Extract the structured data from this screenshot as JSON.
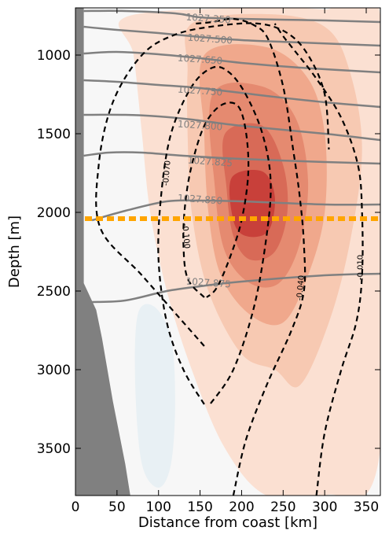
{
  "chart_data": {
    "type": "contour",
    "xlabel": "Distance from coast [km]",
    "ylabel": "Depth [m]",
    "xlim": [
      0,
      367
    ],
    "ylim": [
      3800,
      700
    ],
    "y_inverted": true,
    "x_ticks": [
      0,
      50,
      100,
      150,
      200,
      250,
      300,
      350
    ],
    "y_ticks": [
      1000,
      1500,
      2000,
      2500,
      3000,
      3500
    ],
    "grid": false,
    "colors": {
      "dashed_contour": "#000000",
      "isopycnal": "#808080",
      "reference_line": "#ffa500",
      "topography": "#808080",
      "shading_low": "#f7f7f7",
      "shading_high": "#c8403a",
      "shading_negative": "#e8f0f4"
    },
    "reference_line": {
      "depth": 2040,
      "style": "dotted"
    },
    "isopycnal_labels": [
      {
        "label": "1027.350",
        "x": 160,
        "depth": 770
      },
      {
        "label": "1027.500",
        "x": 162,
        "depth": 900
      },
      {
        "label": "1027.650",
        "x": 150,
        "depth": 1030
      },
      {
        "label": "1027.750",
        "x": 150,
        "depth": 1230
      },
      {
        "label": "1027.800",
        "x": 150,
        "depth": 1450
      },
      {
        "label": "1027.825",
        "x": 162,
        "depth": 1680
      },
      {
        "label": "1027.850",
        "x": 150,
        "depth": 1920
      },
      {
        "label": "1027.875",
        "x": 160,
        "depth": 2450
      }
    ],
    "isopycnals": [
      {
        "name": "1027.350",
        "points": [
          [
            10,
            720
          ],
          [
            60,
            720
          ],
          [
            120,
            735
          ],
          [
            150,
            760
          ],
          [
            200,
            770
          ],
          [
            300,
            780
          ],
          [
            367,
            790
          ]
        ]
      },
      {
        "name": "1027.500",
        "points": [
          [
            10,
            820
          ],
          [
            50,
            840
          ],
          [
            100,
            860
          ],
          [
            150,
            885
          ],
          [
            200,
            905
          ],
          [
            270,
            920
          ],
          [
            367,
            940
          ]
        ]
      },
      {
        "name": "1027.650",
        "points": [
          [
            10,
            990
          ],
          [
            50,
            980
          ],
          [
            100,
            995
          ],
          [
            150,
            1020
          ],
          [
            200,
            1050
          ],
          [
            270,
            1080
          ],
          [
            367,
            1110
          ]
        ]
      },
      {
        "name": "1027.750",
        "points": [
          [
            10,
            1160
          ],
          [
            50,
            1170
          ],
          [
            100,
            1190
          ],
          [
            150,
            1210
          ],
          [
            230,
            1260
          ],
          [
            300,
            1300
          ],
          [
            367,
            1330
          ]
        ]
      },
      {
        "name": "1027.800",
        "points": [
          [
            10,
            1380
          ],
          [
            60,
            1380
          ],
          [
            100,
            1390
          ],
          [
            140,
            1410
          ],
          [
            200,
            1450
          ],
          [
            300,
            1500
          ],
          [
            367,
            1540
          ]
        ]
      },
      {
        "name": "1027.825",
        "points": [
          [
            10,
            1640
          ],
          [
            40,
            1620
          ],
          [
            80,
            1620
          ],
          [
            130,
            1640
          ],
          [
            200,
            1660
          ],
          [
            300,
            1680
          ],
          [
            367,
            1690
          ]
        ]
      },
      {
        "name": "1027.850",
        "points": [
          [
            20,
            2050
          ],
          [
            60,
            1990
          ],
          [
            110,
            1930
          ],
          [
            150,
            1925
          ],
          [
            200,
            1930
          ],
          [
            300,
            1950
          ],
          [
            367,
            1950
          ]
        ]
      },
      {
        "name": "1027.875",
        "points": [
          [
            20,
            2570
          ],
          [
            60,
            2560
          ],
          [
            110,
            2500
          ],
          [
            150,
            2470
          ],
          [
            200,
            2440
          ],
          [
            300,
            2400
          ],
          [
            367,
            2390
          ]
        ]
      }
    ],
    "dashed_contours": [
      {
        "label": "-0.100",
        "points": [
          [
            155,
            2540
          ],
          [
            135,
            2420
          ],
          [
            130,
            2200
          ],
          [
            132,
            1950
          ],
          [
            140,
            1700
          ],
          [
            155,
            1450
          ],
          [
            175,
            1320
          ],
          [
            195,
            1320
          ],
          [
            205,
            1480
          ],
          [
            208,
            1750
          ],
          [
            200,
            2050
          ],
          [
            185,
            2300
          ],
          [
            170,
            2480
          ],
          [
            158,
            2540
          ]
        ]
      },
      {
        "label": "-0.070",
        "points": [
          [
            155,
            3220
          ],
          [
            130,
            3000
          ],
          [
            110,
            2700
          ],
          [
            100,
            2300
          ],
          [
            103,
            1900
          ],
          [
            115,
            1500
          ],
          [
            140,
            1200
          ],
          [
            165,
            1080
          ],
          [
            185,
            1110
          ],
          [
            205,
            1250
          ],
          [
            225,
            1500
          ],
          [
            235,
            1800
          ],
          [
            230,
            2150
          ],
          [
            215,
            2600
          ],
          [
            190,
            3000
          ],
          [
            162,
            3220
          ]
        ]
      },
      {
        "label": "-0.070 outer",
        "points": [
          [
            155,
            2850
          ],
          [
            130,
            2700
          ],
          [
            80,
            2400
          ],
          [
            30,
            2100
          ],
          [
            28,
            1700
          ],
          [
            45,
            1300
          ],
          [
            80,
            1000
          ],
          [
            120,
            870
          ],
          [
            170,
            815
          ],
          [
            220,
            800
          ],
          [
            255,
            860
          ],
          [
            280,
            1000
          ],
          [
            300,
            1250
          ],
          [
            305,
            1600
          ]
        ]
      },
      {
        "label": "-0.040",
        "points": [
          [
            190,
            3800
          ],
          [
            205,
            3450
          ],
          [
            230,
            3100
          ],
          [
            260,
            2750
          ],
          [
            275,
            2500
          ],
          [
            275,
            2200
          ],
          [
            270,
            1900
          ],
          [
            262,
            1600
          ],
          [
            250,
            1200
          ],
          [
            232,
            900
          ],
          [
            215,
            810
          ],
          [
            190,
            770
          ],
          [
            165,
            790
          ],
          [
            145,
            800
          ]
        ]
      },
      {
        "label": "-0.010",
        "points": [
          [
            290,
            3800
          ],
          [
            300,
            3400
          ],
          [
            320,
            3000
          ],
          [
            338,
            2700
          ],
          [
            345,
            2400
          ],
          [
            345,
            2000
          ],
          [
            340,
            1700
          ],
          [
            320,
            1400
          ],
          [
            290,
            1150
          ],
          [
            265,
            980
          ],
          [
            250,
            880
          ],
          [
            240,
            800
          ]
        ]
      }
    ],
    "dashed_contour_labels": [
      {
        "label": "-0.070",
        "x": 110,
        "depth": 1750,
        "angle": -85
      },
      {
        "label": "-0.100",
        "x": 133,
        "depth": 2150,
        "angle": 85
      },
      {
        "label": "-0.040",
        "x": 271,
        "depth": 2480,
        "angle": -85
      },
      {
        "label": "-0.010",
        "x": 343,
        "depth": 2350,
        "angle": -90
      }
    ],
    "shading_levels": [
      {
        "level": "0.1",
        "color": "#fbe0d2",
        "points": [
          [
            60,
            760
          ],
          [
            200,
            700
          ],
          [
            300,
            710
          ],
          [
            367,
            760
          ],
          [
            367,
            3500
          ],
          [
            300,
            3800
          ],
          [
            230,
            3800
          ],
          [
            180,
            3500
          ],
          [
            140,
            3000
          ],
          [
            110,
            2500
          ],
          [
            90,
            2000
          ],
          [
            80,
            1500
          ],
          [
            70,
            1000
          ]
        ]
      },
      {
        "level": "0.2",
        "color": "#f7c9b2",
        "points": [
          [
            140,
            800
          ],
          [
            230,
            740
          ],
          [
            300,
            820
          ],
          [
            330,
            1100
          ],
          [
            345,
            1600
          ],
          [
            330,
            2200
          ],
          [
            305,
            2700
          ],
          [
            270,
            3100
          ],
          [
            240,
            3000
          ],
          [
            200,
            2900
          ],
          [
            160,
            2500
          ],
          [
            140,
            2000
          ],
          [
            135,
            1500
          ],
          [
            135,
            1100
          ]
        ]
      },
      {
        "level": "0.3",
        "color": "#f0a88c",
        "points": [
          [
            155,
            1000
          ],
          [
            230,
            950
          ],
          [
            280,
            1150
          ],
          [
            300,
            1500
          ],
          [
            300,
            2000
          ],
          [
            280,
            2400
          ],
          [
            250,
            2700
          ],
          [
            210,
            2650
          ],
          [
            175,
            2400
          ],
          [
            160,
            2000
          ],
          [
            155,
            1500
          ]
        ]
      },
      {
        "level": "0.4",
        "color": "#e58a70",
        "points": [
          [
            165,
            1250
          ],
          [
            225,
            1200
          ],
          [
            265,
            1400
          ],
          [
            280,
            1800
          ],
          [
            270,
            2200
          ],
          [
            245,
            2450
          ],
          [
            210,
            2450
          ],
          [
            180,
            2250
          ],
          [
            168,
            1850
          ]
        ]
      },
      {
        "level": "0.5",
        "color": "#d86a57",
        "points": [
          [
            180,
            1500
          ],
          [
            225,
            1450
          ],
          [
            250,
            1700
          ],
          [
            255,
            2000
          ],
          [
            240,
            2250
          ],
          [
            210,
            2300
          ],
          [
            190,
            2150
          ],
          [
            182,
            1850
          ]
        ]
      },
      {
        "level": "0.6",
        "color": "#c8403a",
        "points": [
          [
            188,
            1780
          ],
          [
            225,
            1740
          ],
          [
            240,
            1900
          ],
          [
            232,
            2120
          ],
          [
            205,
            2150
          ],
          [
            190,
            2050
          ]
        ]
      }
    ],
    "topography": [
      [
        0,
        700
      ],
      [
        10,
        700
      ],
      [
        10,
        2450
      ],
      [
        25,
        2620
      ],
      [
        32,
        2800
      ],
      [
        45,
        3200
      ],
      [
        60,
        3600
      ],
      [
        66,
        3800
      ],
      [
        0,
        3800
      ]
    ]
  }
}
